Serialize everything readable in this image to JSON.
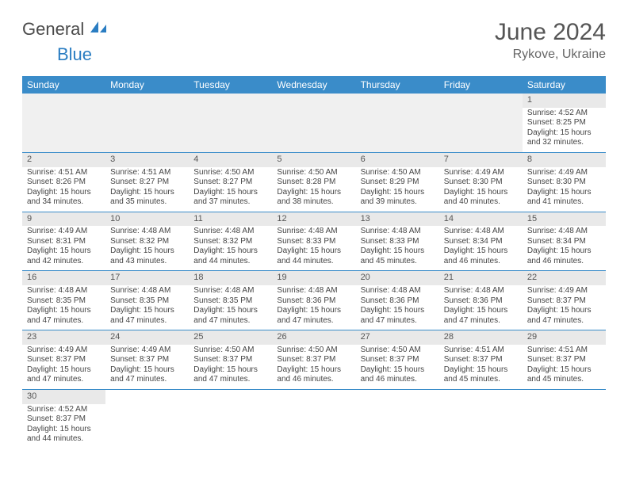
{
  "logo": {
    "text1": "General",
    "text2": "Blue",
    "icon_color": "#2a7dc2"
  },
  "title": "June 2024",
  "location": "Rykove, Ukraine",
  "colors": {
    "header_bg": "#3a8cc9",
    "header_fg": "#ffffff",
    "daynum_bg": "#e9e9e9",
    "cell_border": "#3a8cc9",
    "text": "#444444"
  },
  "weekdays": [
    "Sunday",
    "Monday",
    "Tuesday",
    "Wednesday",
    "Thursday",
    "Friday",
    "Saturday"
  ],
  "leading_blanks": 6,
  "days": [
    {
      "n": 1,
      "sunrise": "4:52 AM",
      "sunset": "8:25 PM",
      "daylight": "15 hours and 32 minutes."
    },
    {
      "n": 2,
      "sunrise": "4:51 AM",
      "sunset": "8:26 PM",
      "daylight": "15 hours and 34 minutes."
    },
    {
      "n": 3,
      "sunrise": "4:51 AM",
      "sunset": "8:27 PM",
      "daylight": "15 hours and 35 minutes."
    },
    {
      "n": 4,
      "sunrise": "4:50 AM",
      "sunset": "8:27 PM",
      "daylight": "15 hours and 37 minutes."
    },
    {
      "n": 5,
      "sunrise": "4:50 AM",
      "sunset": "8:28 PM",
      "daylight": "15 hours and 38 minutes."
    },
    {
      "n": 6,
      "sunrise": "4:50 AM",
      "sunset": "8:29 PM",
      "daylight": "15 hours and 39 minutes."
    },
    {
      "n": 7,
      "sunrise": "4:49 AM",
      "sunset": "8:30 PM",
      "daylight": "15 hours and 40 minutes."
    },
    {
      "n": 8,
      "sunrise": "4:49 AM",
      "sunset": "8:30 PM",
      "daylight": "15 hours and 41 minutes."
    },
    {
      "n": 9,
      "sunrise": "4:49 AM",
      "sunset": "8:31 PM",
      "daylight": "15 hours and 42 minutes."
    },
    {
      "n": 10,
      "sunrise": "4:48 AM",
      "sunset": "8:32 PM",
      "daylight": "15 hours and 43 minutes."
    },
    {
      "n": 11,
      "sunrise": "4:48 AM",
      "sunset": "8:32 PM",
      "daylight": "15 hours and 44 minutes."
    },
    {
      "n": 12,
      "sunrise": "4:48 AM",
      "sunset": "8:33 PM",
      "daylight": "15 hours and 44 minutes."
    },
    {
      "n": 13,
      "sunrise": "4:48 AM",
      "sunset": "8:33 PM",
      "daylight": "15 hours and 45 minutes."
    },
    {
      "n": 14,
      "sunrise": "4:48 AM",
      "sunset": "8:34 PM",
      "daylight": "15 hours and 46 minutes."
    },
    {
      "n": 15,
      "sunrise": "4:48 AM",
      "sunset": "8:34 PM",
      "daylight": "15 hours and 46 minutes."
    },
    {
      "n": 16,
      "sunrise": "4:48 AM",
      "sunset": "8:35 PM",
      "daylight": "15 hours and 47 minutes."
    },
    {
      "n": 17,
      "sunrise": "4:48 AM",
      "sunset": "8:35 PM",
      "daylight": "15 hours and 47 minutes."
    },
    {
      "n": 18,
      "sunrise": "4:48 AM",
      "sunset": "8:35 PM",
      "daylight": "15 hours and 47 minutes."
    },
    {
      "n": 19,
      "sunrise": "4:48 AM",
      "sunset": "8:36 PM",
      "daylight": "15 hours and 47 minutes."
    },
    {
      "n": 20,
      "sunrise": "4:48 AM",
      "sunset": "8:36 PM",
      "daylight": "15 hours and 47 minutes."
    },
    {
      "n": 21,
      "sunrise": "4:48 AM",
      "sunset": "8:36 PM",
      "daylight": "15 hours and 47 minutes."
    },
    {
      "n": 22,
      "sunrise": "4:49 AM",
      "sunset": "8:37 PM",
      "daylight": "15 hours and 47 minutes."
    },
    {
      "n": 23,
      "sunrise": "4:49 AM",
      "sunset": "8:37 PM",
      "daylight": "15 hours and 47 minutes."
    },
    {
      "n": 24,
      "sunrise": "4:49 AM",
      "sunset": "8:37 PM",
      "daylight": "15 hours and 47 minutes."
    },
    {
      "n": 25,
      "sunrise": "4:50 AM",
      "sunset": "8:37 PM",
      "daylight": "15 hours and 47 minutes."
    },
    {
      "n": 26,
      "sunrise": "4:50 AM",
      "sunset": "8:37 PM",
      "daylight": "15 hours and 46 minutes."
    },
    {
      "n": 27,
      "sunrise": "4:50 AM",
      "sunset": "8:37 PM",
      "daylight": "15 hours and 46 minutes."
    },
    {
      "n": 28,
      "sunrise": "4:51 AM",
      "sunset": "8:37 PM",
      "daylight": "15 hours and 45 minutes."
    },
    {
      "n": 29,
      "sunrise": "4:51 AM",
      "sunset": "8:37 PM",
      "daylight": "15 hours and 45 minutes."
    },
    {
      "n": 30,
      "sunrise": "4:52 AM",
      "sunset": "8:37 PM",
      "daylight": "15 hours and 44 minutes."
    }
  ],
  "labels": {
    "sunrise": "Sunrise:",
    "sunset": "Sunset:",
    "daylight": "Daylight:"
  }
}
